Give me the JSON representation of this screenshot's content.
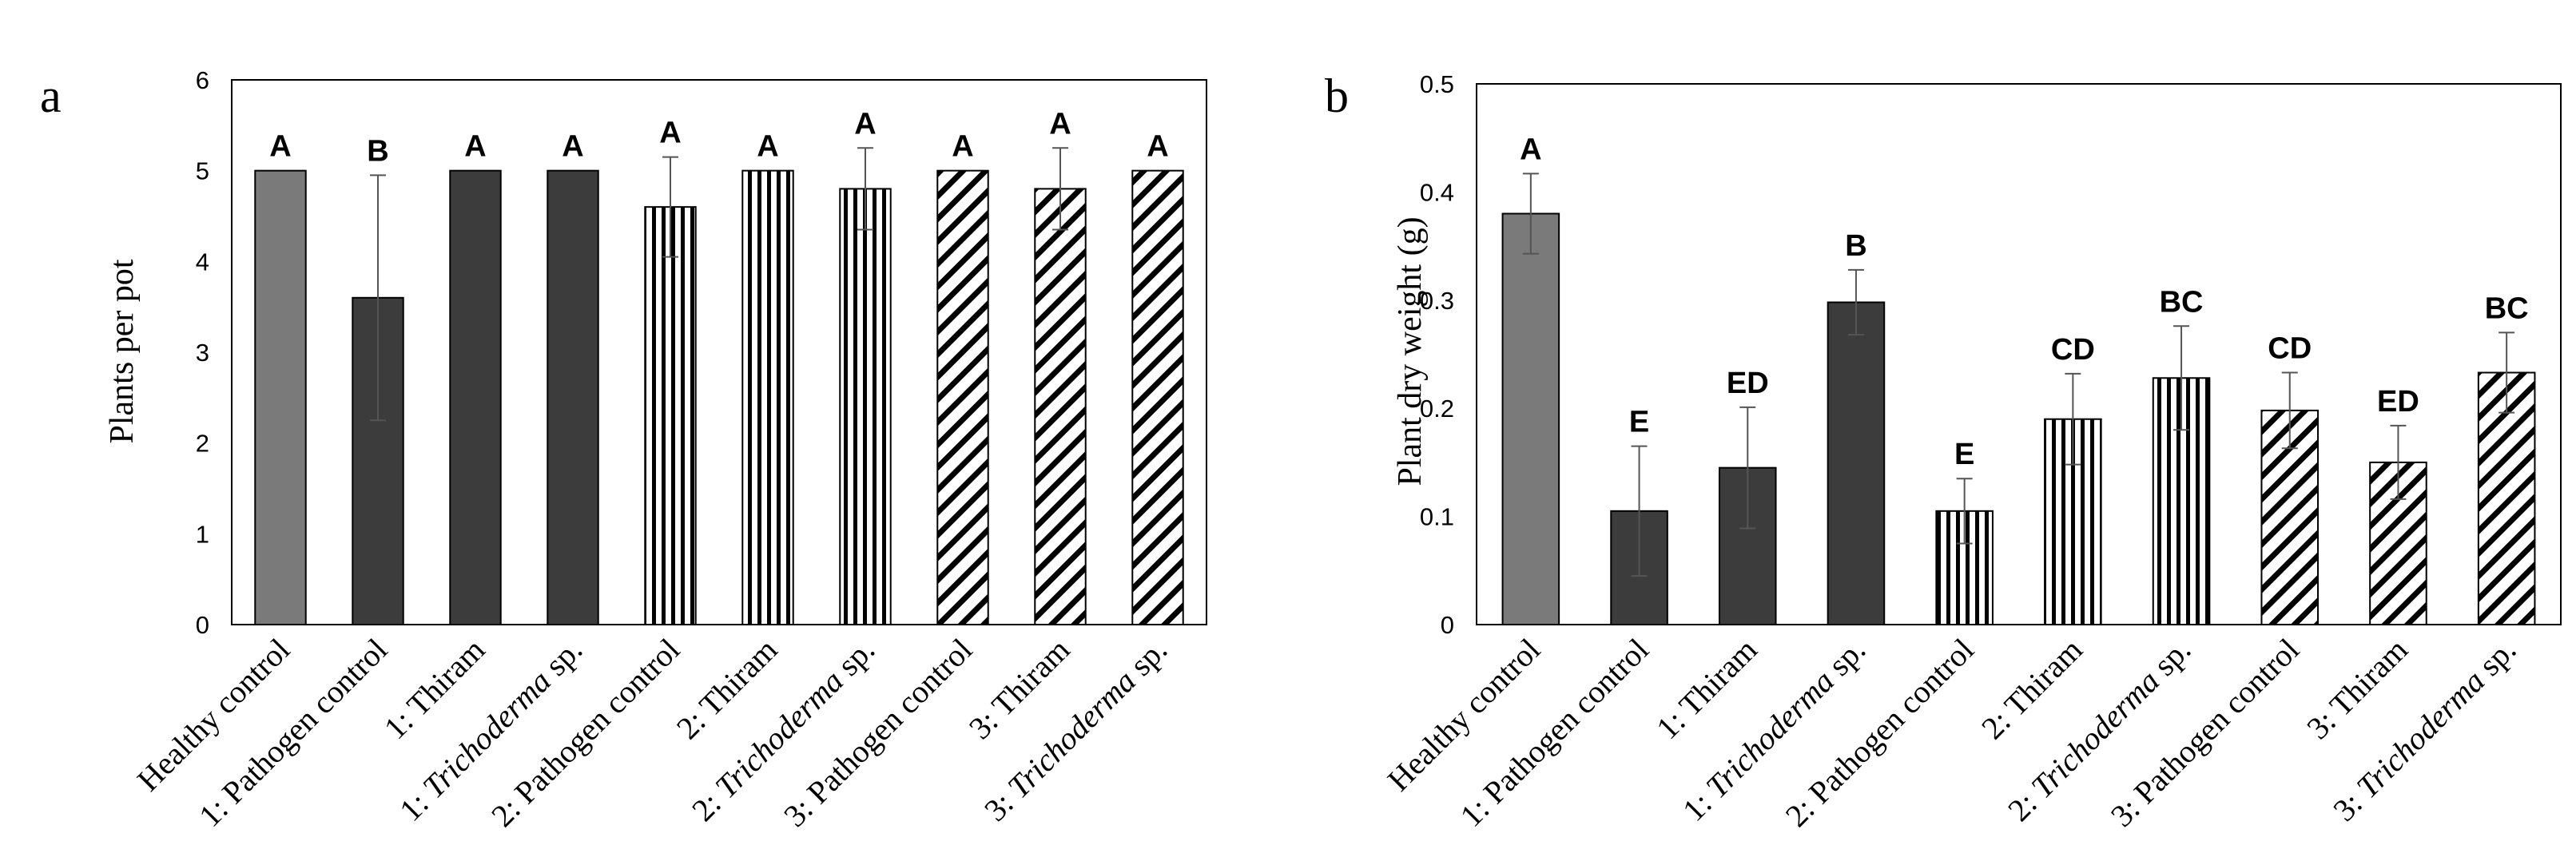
{
  "chart_data": [
    {
      "type": "bar",
      "panel_label": "a",
      "title": "",
      "xlabel": "",
      "ylabel": "Plants per pot",
      "ylim": [
        0,
        6
      ],
      "yticks": [
        "0",
        "1",
        "2",
        "3",
        "4",
        "5",
        "6"
      ],
      "categories": [
        {
          "prefix": "Healthy control",
          "italic": "",
          "suffix": ""
        },
        {
          "prefix": "1: Pathogen control",
          "italic": "",
          "suffix": ""
        },
        {
          "prefix": "1: Thiram",
          "italic": "",
          "suffix": ""
        },
        {
          "prefix": "1: ",
          "italic": "Trichoderma",
          "suffix": " sp."
        },
        {
          "prefix": "2: Pathogen control",
          "italic": "",
          "suffix": ""
        },
        {
          "prefix": "2: Thiram",
          "italic": "",
          "suffix": ""
        },
        {
          "prefix": "2: ",
          "italic": "Trichoderma",
          "suffix": " sp."
        },
        {
          "prefix": "3: Pathogen control",
          "italic": "",
          "suffix": ""
        },
        {
          "prefix": "3: Thiram",
          "italic": "",
          "suffix": ""
        },
        {
          "prefix": "3: ",
          "italic": "Trichoderma",
          "suffix": " sp."
        }
      ],
      "values": [
        5.0,
        3.6,
        5.0,
        5.0,
        4.6,
        5.0,
        4.8,
        5.0,
        4.8,
        5.0
      ],
      "errors": [
        0,
        1.35,
        0,
        0,
        0.55,
        0,
        0.45,
        0,
        0.45,
        0
      ],
      "letters": [
        "A",
        "B",
        "A",
        "A",
        "A",
        "A",
        "A",
        "A",
        "A",
        "A"
      ],
      "styles": [
        "gray",
        "dark",
        "dark",
        "dark",
        "vstripe",
        "vstripe",
        "vstripe",
        "diag",
        "diag",
        "diag"
      ],
      "grid": false
    },
    {
      "type": "bar",
      "panel_label": "b",
      "title": "",
      "xlabel": "",
      "ylabel": "Plant dry weight (g)",
      "ylim": [
        0,
        0.5
      ],
      "yticks": [
        "0",
        "0.1",
        "0.2",
        "0.3",
        "0.4",
        "0.5"
      ],
      "categories": [
        {
          "prefix": "Healthy control",
          "italic": "",
          "suffix": ""
        },
        {
          "prefix": "1: Pathogen control",
          "italic": "",
          "suffix": ""
        },
        {
          "prefix": "1: Thiram",
          "italic": "",
          "suffix": ""
        },
        {
          "prefix": "1: ",
          "italic": "Trichoderma",
          "suffix": " sp."
        },
        {
          "prefix": "2: Pathogen control",
          "italic": "",
          "suffix": ""
        },
        {
          "prefix": "2: Thiram",
          "italic": "",
          "suffix": ""
        },
        {
          "prefix": "2: ",
          "italic": "Trichoderma",
          "suffix": " sp."
        },
        {
          "prefix": "3: Pathogen control",
          "italic": "",
          "suffix": ""
        },
        {
          "prefix": "3: Thiram",
          "italic": "",
          "suffix": ""
        },
        {
          "prefix": "3: ",
          "italic": "Trichoderma",
          "suffix": " sp."
        }
      ],
      "values": [
        0.38,
        0.105,
        0.145,
        0.298,
        0.105,
        0.19,
        0.228,
        0.198,
        0.15,
        0.233
      ],
      "errors": [
        0.037,
        0.06,
        0.056,
        0.03,
        0.03,
        0.042,
        0.048,
        0.035,
        0.034,
        0.037
      ],
      "letters": [
        "A",
        "E",
        "ED",
        "B",
        "E",
        "CD",
        "BC",
        "CD",
        "ED",
        "BC"
      ],
      "styles": [
        "gray",
        "dark",
        "dark",
        "dark",
        "vstripe",
        "vstripe",
        "vstripe",
        "diag",
        "diag",
        "diag"
      ],
      "grid": false
    }
  ],
  "colors": {
    "gray": "#7a7a7a",
    "dark": "#3c3c3c",
    "stroke": "#000000",
    "error": "#555555",
    "frame": "#000000"
  }
}
